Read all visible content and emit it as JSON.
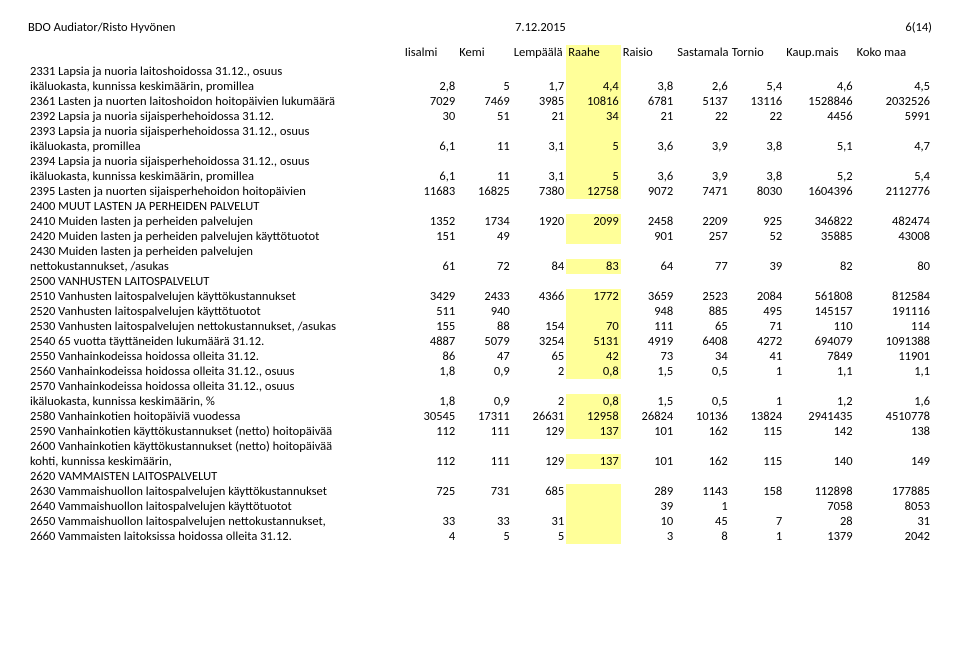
{
  "doc_header": {
    "left": "BDO Audiator/Risto Hyvönen",
    "center": "7.12.2015",
    "right": "6(14)"
  },
  "columns": [
    "Iisalmi",
    "Kemi",
    "Lempäälä",
    "Raahe",
    "Raisio",
    "Sastamala",
    "Tornio",
    "Kaup.mais",
    "Koko maa"
  ],
  "highlight_col_index": 3,
  "highlight_color": "#ffff99",
  "rows": [
    {
      "label": "2331 Lapsia ja nuoria laitoshoidossa 31.12., osuus",
      "values": [
        "",
        "",
        "",
        "",
        "",
        "",
        "",
        "",
        ""
      ]
    },
    {
      "label": "ikäluokasta, kunnissa keskimäärin, promillea",
      "values": [
        "2,8",
        "5",
        "1,7",
        "4,4",
        "3,8",
        "2,6",
        "5,4",
        "4,6",
        "4,5"
      ]
    },
    {
      "label": "2361 Lasten ja nuorten laitoshoidon hoitopäivien lukumäärä",
      "values": [
        "7029",
        "7469",
        "3985",
        "10816",
        "6781",
        "5137",
        "13116",
        "1528846",
        "2032526"
      ]
    },
    {
      "label": "2392 Lapsia ja nuoria sijaisperhehoidossa 31.12.",
      "values": [
        "30",
        "51",
        "21",
        "34",
        "21",
        "22",
        "22",
        "4456",
        "5991"
      ]
    },
    {
      "label": "2393 Lapsia ja nuoria sijaisperhehoidossa 31.12., osuus",
      "values": [
        "",
        "",
        "",
        "",
        "",
        "",
        "",
        "",
        ""
      ]
    },
    {
      "label": "ikäluokasta, promillea",
      "values": [
        "6,1",
        "11",
        "3,1",
        "5",
        "3,6",
        "3,9",
        "3,8",
        "5,1",
        "4,7"
      ]
    },
    {
      "label": "2394 Lapsia ja nuoria sijaisperhehoidossa 31.12., osuus",
      "values": [
        "",
        "",
        "",
        "",
        "",
        "",
        "",
        "",
        ""
      ]
    },
    {
      "label": "ikäluokasta, kunnissa keskimäärin, promillea",
      "values": [
        "6,1",
        "11",
        "3,1",
        "5",
        "3,6",
        "3,9",
        "3,8",
        "5,2",
        "5,4"
      ]
    },
    {
      "label": "2395 Lasten ja nuorten sijaisperhehoidon hoitopäivien",
      "values": [
        "11683",
        "16825",
        "7380",
        "12758",
        "9072",
        "7471",
        "8030",
        "1604396",
        "2112776"
      ]
    },
    {
      "label": "2400 MUUT LASTEN JA PERHEIDEN PALVELUT",
      "values": [
        "",
        "",
        "",
        "",
        "",
        "",
        "",
        "",
        ""
      ],
      "no_hl": true
    },
    {
      "label": "2410 Muiden lasten ja perheiden palvelujen",
      "values": [
        "1352",
        "1734",
        "1920",
        "2099",
        "2458",
        "2209",
        "925",
        "346822",
        "482474"
      ]
    },
    {
      "label": "2420 Muiden lasten ja perheiden palvelujen käyttötuotot",
      "values": [
        "151",
        "49",
        "",
        "",
        "901",
        "257",
        "52",
        "35885",
        "43008"
      ]
    },
    {
      "label": "2430 Muiden lasten ja perheiden palvelujen",
      "values": [
        "",
        "",
        "",
        "",
        "",
        "",
        "",
        "",
        ""
      ],
      "no_hl": true
    },
    {
      "label": "nettokustannukset, /asukas",
      "values": [
        "61",
        "72",
        "84",
        "83",
        "64",
        "77",
        "39",
        "82",
        "80"
      ]
    },
    {
      "label": "2500 VANHUSTEN LAITOSPALVELUT",
      "values": [
        "",
        "",
        "",
        "",
        "",
        "",
        "",
        "",
        ""
      ],
      "no_hl": true
    },
    {
      "label": "2510 Vanhusten laitospalvelujen käyttökustannukset",
      "values": [
        "3429",
        "2433",
        "4366",
        "1772",
        "3659",
        "2523",
        "2084",
        "561808",
        "812584"
      ]
    },
    {
      "label": "2520 Vanhusten laitospalvelujen käyttötuotot",
      "values": [
        "511",
        "940",
        "",
        "",
        "948",
        "885",
        "495",
        "145157",
        "191116"
      ]
    },
    {
      "label": "2530 Vanhusten laitospalvelujen nettokustannukset, /asukas",
      "values": [
        "155",
        "88",
        "154",
        "70",
        "111",
        "65",
        "71",
        "110",
        "114"
      ]
    },
    {
      "label": "2540 65 vuotta täyttäneiden lukumäärä 31.12.",
      "values": [
        "4887",
        "5079",
        "3254",
        "5131",
        "4919",
        "6408",
        "4272",
        "694079",
        "1091388"
      ]
    },
    {
      "label": "2550 Vanhainkodeissa hoidossa olleita 31.12.",
      "values": [
        "86",
        "47",
        "65",
        "42",
        "73",
        "34",
        "41",
        "7849",
        "11901"
      ]
    },
    {
      "label": "2560 Vanhainkodeissa hoidossa olleita 31.12., osuus",
      "values": [
        "1,8",
        "0,9",
        "2",
        "0,8",
        "1,5",
        "0,5",
        "1",
        "1,1",
        "1,1"
      ]
    },
    {
      "label": "2570 Vanhainkodeissa hoidossa olleita 31.12., osuus",
      "values": [
        "",
        "",
        "",
        "",
        "",
        "",
        "",
        "",
        ""
      ],
      "no_hl": true
    },
    {
      "label": "ikäluokasta, kunnissa keskimäärin, %",
      "values": [
        "1,8",
        "0,9",
        "2",
        "0,8",
        "1,5",
        "0,5",
        "1",
        "1,2",
        "1,6"
      ]
    },
    {
      "label": "2580 Vanhainkotien hoitopäiviä vuodessa",
      "values": [
        "30545",
        "17311",
        "26631",
        "12958",
        "26824",
        "10136",
        "13824",
        "2941435",
        "4510778"
      ]
    },
    {
      "label": "2590 Vanhainkotien käyttökustannukset (netto) hoitopäivää",
      "values": [
        "112",
        "111",
        "129",
        "137",
        "101",
        "162",
        "115",
        "142",
        "138"
      ]
    },
    {
      "label": "2600 Vanhainkotien käyttökustannukset (netto) hoitopäivää",
      "values": [
        "",
        "",
        "",
        "",
        "",
        "",
        "",
        "",
        ""
      ],
      "no_hl": true
    },
    {
      "label": "kohti, kunnissa keskimäärin,",
      "values": [
        "112",
        "111",
        "129",
        "137",
        "101",
        "162",
        "115",
        "140",
        "149"
      ]
    },
    {
      "label": "2620 VAMMAISTEN LAITOSPALVELUT",
      "values": [
        "",
        "",
        "",
        "",
        "",
        "",
        "",
        "",
        ""
      ],
      "no_hl": true
    },
    {
      "label": "2630 Vammaishuollon laitospalvelujen käyttökustannukset",
      "values": [
        "725",
        "731",
        "685",
        "",
        "289",
        "1143",
        "158",
        "112898",
        "177885"
      ]
    },
    {
      "label": "2640 Vammaishuollon laitospalvelujen käyttötuotot",
      "values": [
        "",
        "",
        "",
        "",
        "39",
        "1",
        "",
        "7058",
        "8053"
      ]
    },
    {
      "label": "2650 Vammaishuollon laitospalvelujen nettokustannukset,",
      "values": [
        "33",
        "33",
        "31",
        "",
        "10",
        "45",
        "7",
        "28",
        "31"
      ]
    },
    {
      "label": "2660 Vammaisten laitoksissa hoidossa olleita 31.12.",
      "values": [
        "4",
        "5",
        "5",
        "",
        "3",
        "8",
        "1",
        "1379",
        "2042"
      ]
    }
  ]
}
